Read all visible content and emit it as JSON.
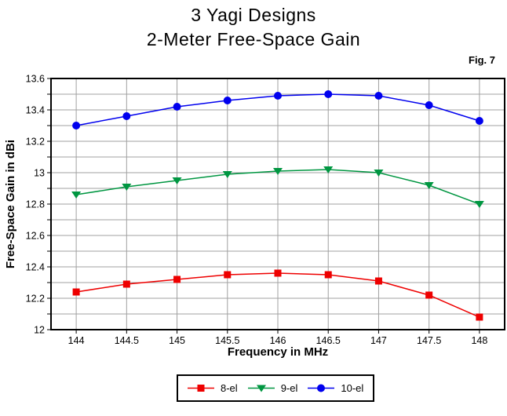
{
  "page": {
    "title_line1": "3 Yagi Designs",
    "title_line2": "2-Meter Free-Space Gain",
    "fig_label": "Fig. 7"
  },
  "chart_data": {
    "type": "line",
    "title": "3 Yagi Designs",
    "subtitle": "2-Meter Free-Space Gain",
    "figure_label": "Fig. 7",
    "xlabel": "Frequency in MHz",
    "ylabel": "Free-Space Gain in dBi",
    "x": [
      144,
      144.5,
      145,
      145.5,
      146,
      146.5,
      147,
      147.5,
      148
    ],
    "series": [
      {
        "name": "8-el",
        "marker": "square",
        "color": "#ee0000",
        "values": [
          12.24,
          12.29,
          12.32,
          12.35,
          12.36,
          12.35,
          12.31,
          12.22,
          12.08
        ]
      },
      {
        "name": "9-el",
        "marker": "triangle-down",
        "color": "#009641",
        "values": [
          12.86,
          12.91,
          12.95,
          12.99,
          13.01,
          13.02,
          13.0,
          12.92,
          12.8
        ]
      },
      {
        "name": "10-el",
        "marker": "circle",
        "color": "#0000ee",
        "values": [
          13.3,
          13.36,
          13.42,
          13.46,
          13.49,
          13.5,
          13.49,
          13.43,
          13.33
        ]
      }
    ],
    "xlim": [
      143.75,
      148.25
    ],
    "ylim": [
      12,
      13.6
    ],
    "x_tick_step": 0.5,
    "y_tick_label_step": 0.2,
    "y_grid_step": 0.1,
    "grid": true,
    "grid_color": "#a0a0a0",
    "axis_color": "#000000",
    "background_color": "#ffffff",
    "legend_position": "bottom"
  }
}
